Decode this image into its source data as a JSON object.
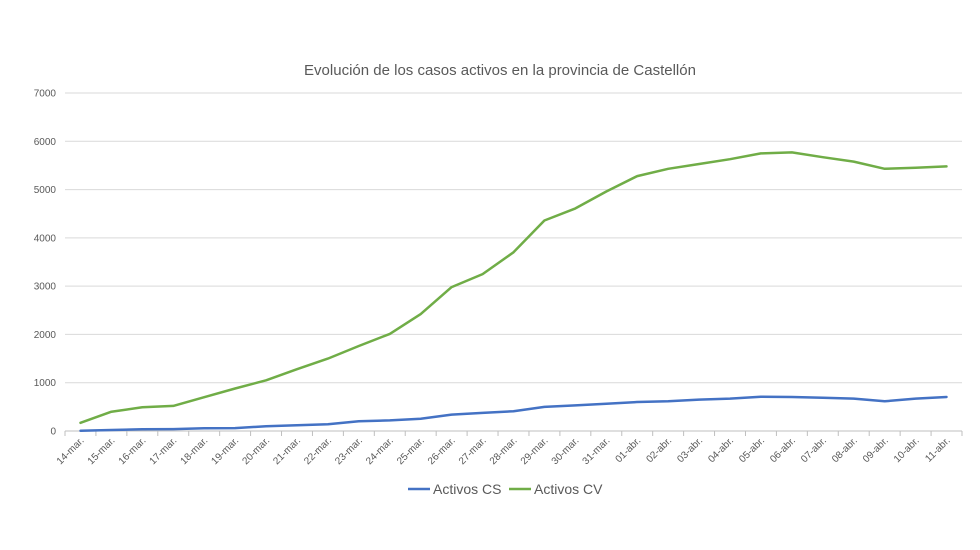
{
  "chart_data": {
    "type": "line",
    "title": "Evolución de los casos activos en la provincia de Castellón",
    "xlabel": "",
    "ylabel": "",
    "ylim": [
      0,
      7000
    ],
    "yticks": [
      0,
      1000,
      2000,
      3000,
      4000,
      5000,
      6000,
      7000
    ],
    "grid": true,
    "legend_position": "bottom",
    "categories": [
      "14-mar.",
      "15-mar.",
      "16-mar.",
      "17-mar.",
      "18-mar.",
      "19-mar.",
      "20-mar.",
      "21-mar.",
      "22-mar.",
      "23-mar.",
      "24-mar.",
      "25-mar.",
      "26-mar.",
      "27-mar.",
      "28-mar.",
      "29-mar.",
      "30-mar.",
      "31-mar.",
      "01-abr.",
      "02-abr.",
      "03-abr.",
      "04-abr.",
      "05-abr.",
      "06-abr.",
      "07-abr.",
      "08-abr.",
      "09-abr.",
      "10-abr.",
      "11-abr."
    ],
    "series": [
      {
        "name": "Activos CS",
        "color": "#4472C4",
        "values": [
          5,
          20,
          35,
          40,
          55,
          60,
          100,
          120,
          140,
          200,
          220,
          255,
          340,
          375,
          410,
          500,
          530,
          565,
          600,
          615,
          650,
          670,
          710,
          705,
          690,
          670,
          615,
          670,
          705
        ]
      },
      {
        "name": "Activos CV",
        "color": "#70AD47",
        "values": [
          170,
          400,
          490,
          520,
          700,
          880,
          1050,
          1280,
          1500,
          1760,
          2010,
          2420,
          2980,
          3250,
          3700,
          4360,
          4610,
          4960,
          5280,
          5430,
          5530,
          5630,
          5750,
          5770,
          5670,
          5580,
          5430,
          5450,
          5480
        ]
      }
    ]
  }
}
